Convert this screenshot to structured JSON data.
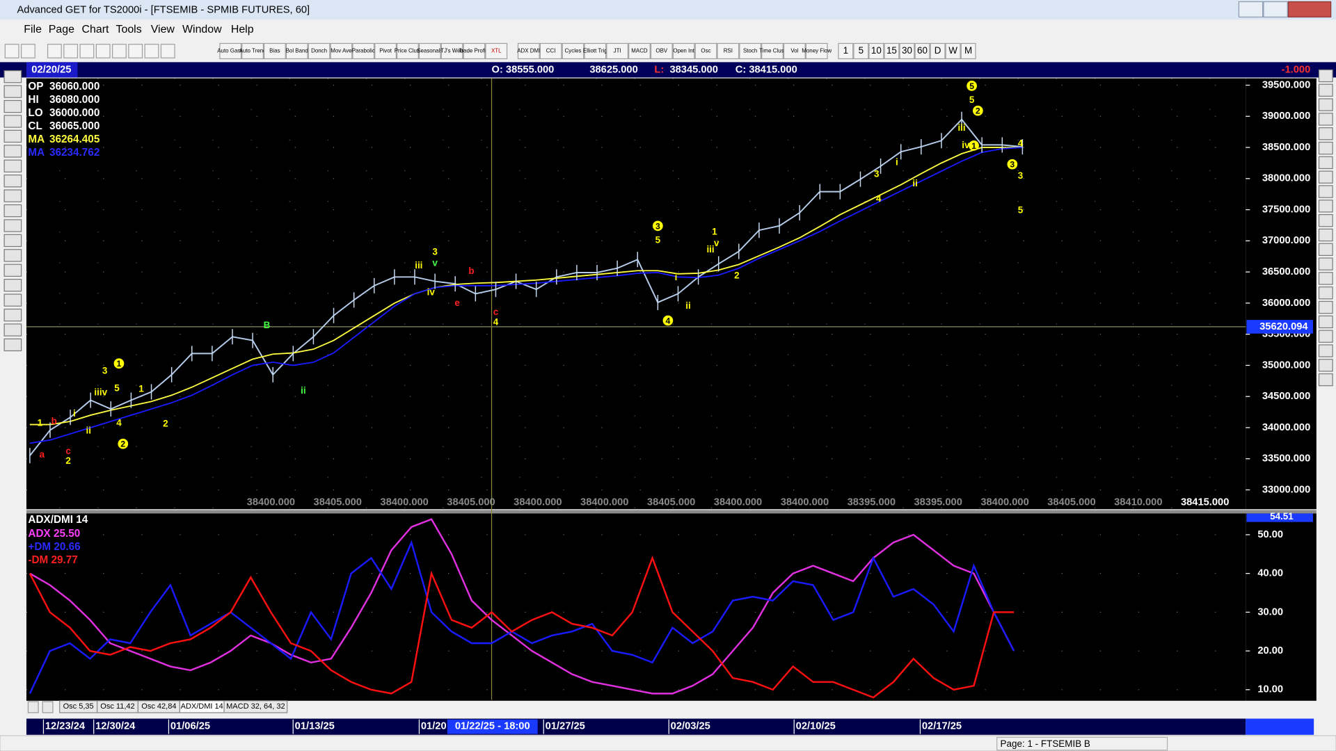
{
  "window_title": "Advanced GET for TS2000i - [FTSEMIB - SPMIB FUTURES, 60]",
  "menu": [
    "File",
    "Page",
    "Chart",
    "Tools",
    "View",
    "Window",
    "Help"
  ],
  "toolbar": [
    "Auto Gann",
    "Auto Trend",
    "Bias",
    "Bol Band",
    "Donch",
    "Mov Ave",
    "Parabolic",
    "Pivot",
    "Price Clust",
    "Seasonals",
    "TJ's Web",
    "Trade Profile",
    "XTL",
    "ADX DMI",
    "CCI",
    "Cycles",
    "Elliott Trig",
    "JTI",
    "MACD",
    "OBV",
    "Open Int",
    "Osc",
    "RSI",
    "Stoch",
    "Time Clust",
    "Vol",
    "Money Flow",
    "1",
    "5",
    "10",
    "15",
    "30",
    "60",
    "D",
    "W",
    "M"
  ],
  "header": {
    "date": "02/20/25",
    "open": "O: 38555.000",
    "high": "38625.000",
    "low_prefix": "L:",
    "low": "38345.000",
    "close": "C: 38415.000",
    "change": "-1.000"
  },
  "readouts": [
    {
      "label": "OP",
      "value": "36060.000",
      "color": "#ffffff"
    },
    {
      "label": "HI",
      "value": "36080.000",
      "color": "#ffffff"
    },
    {
      "label": "LO",
      "value": "36000.000",
      "color": "#ffffff"
    },
    {
      "label": "CL",
      "value": "36065.000",
      "color": "#ffffff"
    },
    {
      "label": "MA",
      "value": "36264.405",
      "color": "#ffff40"
    },
    {
      "label": "MA",
      "value": "36234.762",
      "color": "#2a2aff"
    }
  ],
  "price_chart": {
    "ylim": [
      32690,
      39610
    ],
    "yticks": [
      {
        "value": 33000,
        "label": "33000.000"
      },
      {
        "value": 33500,
        "label": "33500.000"
      },
      {
        "value": 34000,
        "label": "34000.000"
      },
      {
        "value": 34500,
        "label": "34500.000"
      },
      {
        "value": 35000,
        "label": "35000.000"
      },
      {
        "value": 35500,
        "label": "35500.000"
      },
      {
        "value": 36000,
        "label": "36000.000"
      },
      {
        "value": 36500,
        "label": "36500.000"
      },
      {
        "value": 37000,
        "label": "37000.000"
      },
      {
        "value": 37500,
        "label": "37500.000"
      },
      {
        "value": 38000,
        "label": "38000.000"
      },
      {
        "value": 38500,
        "label": "38500.000"
      },
      {
        "value": 39000,
        "label": "39000.000"
      },
      {
        "value": 39500,
        "label": "39500.000"
      }
    ],
    "grid": true,
    "cursor_price": 35620.094,
    "cursor_time": "01/22/25 - 18:00",
    "series": [
      {
        "name": "Price",
        "color": "#b4cbea",
        "values": [
          33550,
          33960,
          34165,
          34440,
          34300,
          34440,
          34575,
          34850,
          35190,
          35190,
          35460,
          35400,
          34850,
          35190,
          35460,
          35800,
          36050,
          36280,
          36420,
          36420,
          36350,
          36310,
          36150,
          36220,
          36350,
          36220,
          36420,
          36490,
          36490,
          36560,
          36700,
          36010,
          36150,
          36420,
          36630,
          36830,
          37170,
          37240,
          37450,
          37790,
          37790,
          37990,
          38200,
          38430,
          38510,
          38610,
          38950,
          38540,
          38540,
          38510
        ]
      },
      {
        "name": "MA",
        "color": "#ffff40",
        "values": [
          34050,
          34050,
          34100,
          34200,
          34280,
          34350,
          34420,
          34520,
          34650,
          34800,
          34950,
          35100,
          35180,
          35200,
          35260,
          35400,
          35600,
          35800,
          36000,
          36150,
          36250,
          36300,
          36320,
          36330,
          36350,
          36370,
          36400,
          36430,
          36460,
          36490,
          36520,
          36520,
          36470,
          36480,
          36530,
          36620,
          36760,
          36900,
          37050,
          37230,
          37420,
          37580,
          37740,
          37900,
          38080,
          38250,
          38400,
          38500,
          38500,
          38500
        ]
      },
      {
        "name": "MA",
        "color": "#1a1aff",
        "values": [
          33750,
          33800,
          33900,
          34000,
          34100,
          34200,
          34300,
          34400,
          34520,
          34680,
          34850,
          35000,
          35050,
          35000,
          35050,
          35200,
          35450,
          35700,
          35950,
          36150,
          36250,
          36280,
          36280,
          36280,
          36300,
          36320,
          36350,
          36380,
          36410,
          36440,
          36480,
          36490,
          36420,
          36410,
          36450,
          36560,
          36720,
          36860,
          37000,
          37150,
          37320,
          37480,
          37640,
          37800,
          37960,
          38120,
          38280,
          38420,
          38480,
          38500
        ]
      }
    ],
    "wave_labels": [
      {
        "text": "a",
        "index": 0.6,
        "price": 33575,
        "color": "#ff2020",
        "circle": false
      },
      {
        "text": "1",
        "index": 0.5,
        "price": 34080,
        "color": "#ffff00",
        "circle": false
      },
      {
        "text": "b",
        "index": 1.2,
        "price": 34110,
        "color": "#ff2020",
        "circle": false
      },
      {
        "text": "c",
        "index": 1.9,
        "price": 33630,
        "color": "#ff2020",
        "circle": false
      },
      {
        "text": "2",
        "index": 1.9,
        "price": 33470,
        "color": "#ffff00",
        "circle": false
      },
      {
        "text": "i",
        "index": 2.2,
        "price": 34230,
        "color": "#ffff00",
        "circle": false
      },
      {
        "text": "ii",
        "index": 2.9,
        "price": 33960,
        "color": "#ffff00",
        "circle": false
      },
      {
        "text": "iiiv",
        "index": 3.5,
        "price": 34570,
        "color": "#ffff00",
        "circle": false
      },
      {
        "text": "3",
        "index": 3.7,
        "price": 34920,
        "color": "#ffff00",
        "circle": false
      },
      {
        "text": "1",
        "index": 4.4,
        "price": 35030,
        "color": "#ffff00",
        "circle": true
      },
      {
        "text": "5",
        "index": 4.3,
        "price": 34640,
        "color": "#ffff00",
        "circle": false
      },
      {
        "text": "4",
        "index": 4.4,
        "price": 34080,
        "color": "#ffff00",
        "circle": false
      },
      {
        "text": "2",
        "index": 4.6,
        "price": 33740,
        "color": "#ffff00",
        "circle": true
      },
      {
        "text": "1",
        "index": 5.5,
        "price": 34630,
        "color": "#ffff00",
        "circle": false
      },
      {
        "text": "2",
        "index": 6.7,
        "price": 34070,
        "color": "#ffff00",
        "circle": false
      },
      {
        "text": "B",
        "index": 11.7,
        "price": 35650,
        "color": "#40ff40",
        "circle": false
      },
      {
        "text": "ii",
        "index": 13.5,
        "price": 34600,
        "color": "#40ff40",
        "circle": false
      },
      {
        "text": "iii",
        "index": 19.2,
        "price": 36610,
        "color": "#ffff00",
        "circle": false
      },
      {
        "text": "3",
        "index": 20,
        "price": 36830,
        "color": "#ffff00",
        "circle": false
      },
      {
        "text": "v",
        "index": 20,
        "price": 36650,
        "color": "#40ff40",
        "circle": false
      },
      {
        "text": "iv",
        "index": 19.8,
        "price": 36180,
        "color": "#ffff00",
        "circle": false
      },
      {
        "text": "b",
        "index": 21.8,
        "price": 36520,
        "color": "#ff2020",
        "circle": false
      },
      {
        "text": "e",
        "index": 21.1,
        "price": 36010,
        "color": "#ff2020",
        "circle": false
      },
      {
        "text": "c",
        "index": 23,
        "price": 35860,
        "color": "#ff2020",
        "circle": false
      },
      {
        "text": "4",
        "index": 23,
        "price": 35700,
        "color": "#ffff00",
        "circle": false
      },
      {
        "text": "3",
        "index": 31,
        "price": 37240,
        "color": "#ffff00",
        "circle": true
      },
      {
        "text": "5",
        "index": 31,
        "price": 37020,
        "color": "#ffff00",
        "circle": false
      },
      {
        "text": "i",
        "index": 31.9,
        "price": 36420,
        "color": "#ffff00",
        "circle": false
      },
      {
        "text": "4",
        "index": 31.5,
        "price": 35720,
        "color": "#ffff00",
        "circle": true
      },
      {
        "text": "ii",
        "index": 32.5,
        "price": 35960,
        "color": "#ffff00",
        "circle": false
      },
      {
        "text": "1",
        "index": 33.8,
        "price": 37150,
        "color": "#ffff00",
        "circle": false
      },
      {
        "text": "v",
        "index": 33.9,
        "price": 36970,
        "color": "#ffff00",
        "circle": false
      },
      {
        "text": "iii",
        "index": 33.6,
        "price": 36870,
        "color": "#ffff00",
        "circle": false
      },
      {
        "text": "2",
        "index": 34.9,
        "price": 36450,
        "color": "#ffff00",
        "circle": false
      },
      {
        "text": "3",
        "index": 41.8,
        "price": 38080,
        "color": "#ffff00",
        "circle": false
      },
      {
        "text": "4",
        "index": 41.9,
        "price": 37680,
        "color": "#ffff00",
        "circle": false
      },
      {
        "text": "i",
        "index": 42.8,
        "price": 38270,
        "color": "#ffff00",
        "circle": false
      },
      {
        "text": "ii",
        "index": 43.7,
        "price": 37930,
        "color": "#ffff00",
        "circle": false
      },
      {
        "text": "5",
        "index": 46.5,
        "price": 39490,
        "color": "#ffff00",
        "circle": true
      },
      {
        "text": "5",
        "index": 46.5,
        "price": 39270,
        "color": "#ffff00",
        "circle": false
      },
      {
        "text": "2",
        "index": 46.8,
        "price": 39090,
        "color": "#ffff00",
        "circle": true
      },
      {
        "text": "iii",
        "index": 46,
        "price": 38820,
        "color": "#ffff00",
        "circle": false
      },
      {
        "text": "iv",
        "index": 46.2,
        "price": 38540,
        "color": "#ffff00",
        "circle": false
      },
      {
        "text": "1",
        "index": 46.6,
        "price": 38530,
        "color": "#ffff00",
        "circle": true
      },
      {
        "text": "3",
        "index": 48.5,
        "price": 38230,
        "color": "#ffff00",
        "circle": true
      },
      {
        "text": "4",
        "index": 48.9,
        "price": 38570,
        "color": "#ffff00",
        "circle": false
      },
      {
        "text": "3",
        "index": 48.9,
        "price": 38050,
        "color": "#ffff00",
        "circle": false
      },
      {
        "text": "5",
        "index": 48.9,
        "price": 37500,
        "color": "#ffff00",
        "circle": false
      }
    ],
    "bottom_labels": [
      "38400.000",
      "38405.000",
      "38400.000",
      "38405.000",
      "38400.000",
      "38400.000",
      "38405.000",
      "38400.000",
      "38400.000",
      "38395.000",
      "38395.000",
      "38400.000",
      "38405.000",
      "38410.000",
      "38415.000"
    ]
  },
  "indicator_chart": {
    "title": "ADX/DMI 14",
    "readouts": [
      {
        "text": "ADX 25.50",
        "color": "#ff40ff"
      },
      {
        "text": "+DM 20.66",
        "color": "#2a2aff"
      },
      {
        "text": "-DM 29.77",
        "color": "#ff2020"
      }
    ],
    "top_label": "54.51",
    "ylim": [
      7.36,
      55.49
    ],
    "yticks": [
      {
        "value": 10,
        "label": "10.00"
      },
      {
        "value": 20,
        "label": "20.00"
      },
      {
        "value": 30,
        "label": "30.00"
      },
      {
        "value": 40,
        "label": "40.00"
      },
      {
        "value": 50,
        "label": "50.00"
      }
    ],
    "series": [
      {
        "name": "ADX",
        "color": "#e030e0",
        "values": [
          40,
          37,
          33,
          28,
          22,
          20,
          18,
          16,
          15,
          17,
          20,
          24,
          22,
          19,
          17,
          18,
          26,
          35,
          46,
          52,
          54,
          45,
          33,
          28,
          24,
          20,
          17,
          14,
          12,
          11,
          10,
          9,
          9,
          11,
          14,
          20,
          26,
          35,
          40,
          42,
          40,
          38,
          44,
          48,
          50,
          46,
          42,
          40,
          30,
          20
        ]
      },
      {
        "name": "+DM",
        "color": "#1a1aff",
        "values": [
          9,
          20,
          22,
          18,
          23,
          22,
          30,
          37,
          24,
          27,
          30,
          26,
          22,
          18,
          30,
          23,
          40,
          44,
          36,
          48,
          30,
          25,
          22,
          22,
          25,
          22,
          24,
          25,
          27,
          20,
          19,
          17,
          26,
          22,
          25,
          33,
          34,
          33,
          38,
          37,
          28,
          30,
          44,
          34,
          36,
          32,
          25,
          42,
          30,
          20
        ]
      },
      {
        "name": "-DM",
        "color": "#ff1010",
        "values": [
          40,
          30,
          26,
          20,
          19,
          21,
          20,
          22,
          23,
          26,
          30,
          39,
          30,
          22,
          20,
          15,
          12,
          10,
          9,
          12,
          40,
          28,
          26,
          30,
          25,
          28,
          30,
          27,
          26,
          24,
          30,
          44,
          30,
          25,
          20,
          13,
          12,
          10,
          16,
          12,
          12,
          10,
          8,
          12,
          18,
          13,
          10,
          11,
          30,
          30
        ]
      }
    ]
  },
  "tabs": [
    "Osc 5,35",
    "Osc 11,42",
    "Osc 42,84",
    "ADX/DMI 14",
    "MACD 32, 64, 32"
  ],
  "dates": [
    "12/23/24",
    "12/30/24",
    "01/06/25",
    "01/13/25",
    "01/20",
    "01/27/25",
    "02/03/25",
    "02/10/25",
    "02/17/25"
  ],
  "status": "Page: 1 - FTSEMIB B"
}
